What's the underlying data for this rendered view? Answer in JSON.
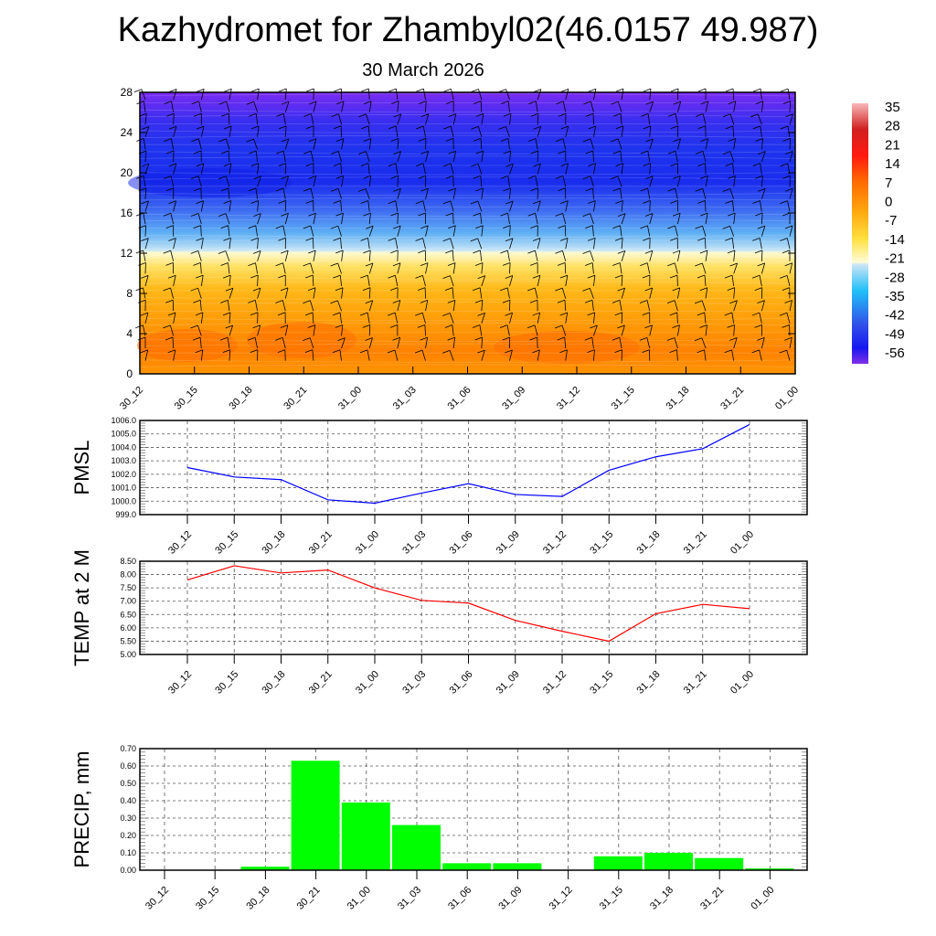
{
  "title": "Kazhydromet for Zhambyl02(46.0157 49.987)",
  "subtitle": "30 March 2026",
  "chart_data": [
    {
      "type": "heatmap",
      "name": "temperature-wind-profile",
      "x_ticklabels": [
        "30_12",
        "30_15",
        "30_18",
        "30_21",
        "31_00",
        "31_03",
        "31_06",
        "31_09",
        "31_12",
        "31_15",
        "31_18",
        "31_21",
        "01_00"
      ],
      "ylim": [
        0,
        28
      ],
      "y_ticks": [
        0,
        4,
        8,
        12,
        16,
        20,
        24,
        28
      ],
      "colorbar": {
        "labels": [
          "35",
          "28",
          "21",
          "14",
          "7",
          "0",
          "-7",
          "-14",
          "-21",
          "-28",
          "-35",
          "-42",
          "-49",
          "-56"
        ],
        "range": [
          -60,
          38
        ]
      }
    },
    {
      "type": "line",
      "name": "pmsl",
      "ylabel": "PMSL",
      "categories": [
        "30_12",
        "30_15",
        "30_18",
        "30_21",
        "31_00",
        "31_03",
        "31_06",
        "31_09",
        "31_12",
        "31_15",
        "31_18",
        "31_21",
        "01_00"
      ],
      "values": [
        1002.5,
        1001.8,
        1001.6,
        1000.1,
        999.85,
        1000.6,
        1001.3,
        1000.5,
        1000.35,
        1002.3,
        1003.3,
        1003.9,
        1005.7
      ],
      "ylim": [
        999.0,
        1006.0
      ],
      "y_ticklabels": [
        "999.0",
        "1000.0",
        "1001.0",
        "1002.0",
        "1003.0",
        "1004.0",
        "1005.0",
        "1006.0"
      ],
      "color": "#0000ff"
    },
    {
      "type": "line",
      "name": "temp-2m",
      "ylabel": "TEMP at 2 M",
      "categories": [
        "30_12",
        "30_15",
        "30_18",
        "30_21",
        "31_00",
        "31_03",
        "31_06",
        "31_09",
        "31_12",
        "31_15",
        "31_18",
        "31_21",
        "01_00"
      ],
      "values": [
        7.8,
        8.33,
        8.06,
        8.17,
        7.5,
        7.03,
        6.93,
        6.28,
        5.87,
        5.5,
        6.53,
        6.88,
        6.72
      ],
      "ylim": [
        5.0,
        8.5
      ],
      "y_ticklabels": [
        "5.00",
        "5.50",
        "6.00",
        "6.50",
        "7.00",
        "7.50",
        "8.00",
        "8.50"
      ],
      "color": "#ff0000"
    },
    {
      "type": "bar",
      "name": "precip",
      "ylabel": "PRECIP, mm",
      "categories": [
        "30_12",
        "30_15",
        "30_18",
        "30_21",
        "31_00",
        "31_03",
        "31_06",
        "31_09",
        "31_12",
        "31_15",
        "31_18",
        "31_21",
        "01_00"
      ],
      "values": [
        0,
        0,
        0.02,
        0.63,
        0.39,
        0.26,
        0.04,
        0.04,
        0,
        0.08,
        0.1,
        0.07,
        0.01
      ],
      "ylim": [
        0,
        0.7
      ],
      "y_ticklabels": [
        "0.00",
        "0.10",
        "0.20",
        "0.30",
        "0.40",
        "0.50",
        "0.60",
        "0.70"
      ],
      "color": "#00ff00"
    }
  ]
}
